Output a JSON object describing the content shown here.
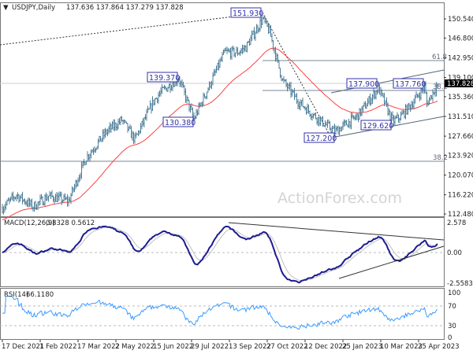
{
  "header": {
    "symbol_menu_icon": "triangle-down-icon",
    "title": "USDJPY,Daily",
    "ohlc": "137.636 137.864 137.279 137.828"
  },
  "watermark": "ActionForex.com",
  "current_price": "137.828",
  "colors": {
    "bars": "#4f7f99",
    "moving_average": "#ff4040",
    "macd": "#1c1c8f",
    "macd_signal": "#c0c0c0",
    "rsi": "#3d9bff",
    "label": "#3333aa"
  },
  "chart_data": [
    {
      "type": "ohlc",
      "title": "USDJPY,Daily",
      "price_ticks": [
        "150.540",
        "146.800",
        "142.950",
        "139.100",
        "135.360",
        "131.510",
        "127.660",
        "123.920",
        "120.070",
        "116.220",
        "112.480"
      ],
      "ylim": [
        112.48,
        150.54
      ],
      "date_ticks": [
        "17 Dec 2021",
        "1 Feb 2022",
        "17 Mar 2022",
        "2 May 2022",
        "15 Jun 2022",
        "29 Jul 2022",
        "13 Sep 2022",
        "27 Oct 2022",
        "12 Dec 2022",
        "25 Jan 2023",
        "10 Mar 2023",
        "25 Apr 2023"
      ],
      "close_path": [
        [
          "2021-12-17",
          113.7
        ],
        [
          "2022-01-04",
          116.2
        ],
        [
          "2022-01-24",
          113.9
        ],
        [
          "2022-02-10",
          116.0
        ],
        [
          "2022-03-07",
          115.0
        ],
        [
          "2022-03-28",
          123.5
        ],
        [
          "2022-04-20",
          128.5
        ],
        [
          "2022-05-09",
          130.8
        ],
        [
          "2022-05-24",
          127.0
        ],
        [
          "2022-06-15",
          134.5
        ],
        [
          "2022-06-22",
          136.0
        ],
        [
          "2022-07-14",
          139.0
        ],
        [
          "2022-08-02",
          131.0
        ],
        [
          "2022-09-07",
          144.0
        ],
        [
          "2022-09-22",
          144.0
        ],
        [
          "2022-10-03",
          145.0
        ],
        [
          "2022-10-21",
          150.5
        ],
        [
          "2022-10-31",
          148.0
        ],
        [
          "2022-11-10",
          141.0
        ],
        [
          "2022-11-15",
          138.5
        ],
        [
          "2022-12-02",
          134.5
        ],
        [
          "2022-12-20",
          132.0
        ],
        [
          "2023-01-16",
          128.5
        ],
        [
          "2023-02-10",
          131.5
        ],
        [
          "2023-03-08",
          137.0
        ],
        [
          "2023-03-24",
          130.5
        ],
        [
          "2023-04-04",
          131.5
        ],
        [
          "2023-04-19",
          134.5
        ],
        [
          "2023-05-02",
          137.3
        ],
        [
          "2023-05-04",
          134.0
        ],
        [
          "2023-05-17",
          137.828
        ]
      ],
      "moving_average": "red line",
      "swing_labels": [
        "151.930",
        "139.370",
        "130.380",
        "137.900",
        "137.760",
        "129.620",
        "127.200"
      ],
      "fibonacci_levels": [
        {
          "label": "61.8",
          "price": 142.6
        },
        {
          "label": "38.2",
          "price": 137.0
        },
        {
          "label": "38.2",
          "price": 122.8
        }
      ],
      "grid": false
    },
    {
      "type": "line",
      "title": "MACD(12,26,9) 0.8328 0.5612",
      "indicator_label": "MACD(12,26,9)",
      "values_label": "0.8328 0.5612",
      "y_ticks": [
        "2.578",
        "0.00",
        "-2.5583"
      ],
      "ylim": [
        -2.5583,
        2.578
      ],
      "series": [
        "macd",
        "signal"
      ]
    },
    {
      "type": "line",
      "title": "RSI(14) 66.1180",
      "indicator_label": "RSI(14)",
      "values_label": "66.1180",
      "y_ticks": [
        "100",
        "70",
        "30",
        "0"
      ],
      "ylim": [
        0,
        100
      ],
      "levels": [
        70,
        30
      ]
    }
  ]
}
